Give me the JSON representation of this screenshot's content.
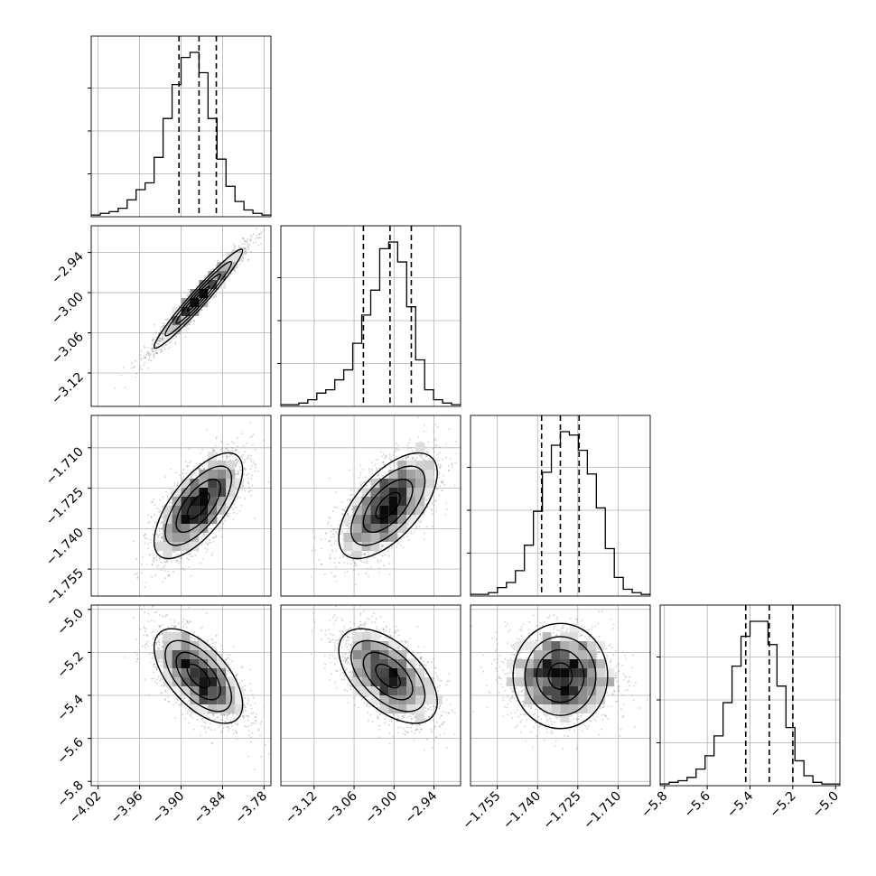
{
  "chart_data": {
    "type": "corner",
    "parameters": [
      {
        "ticks": [
          -4.02,
          -3.96,
          -3.9,
          -3.84,
          -3.78
        ],
        "tick_labels": [
          "−4.02",
          "−3.96",
          "−3.90",
          "−3.84",
          "−3.78"
        ],
        "range": [
          -4.03,
          -3.77
        ]
      },
      {
        "ticks": [
          -3.12,
          -3.06,
          -3.0,
          -2.94
        ],
        "tick_labels": [
          "−3.12",
          "−3.06",
          "−3.00",
          "−2.94"
        ],
        "range": [
          -3.17,
          -2.9
        ]
      },
      {
        "ticks": [
          -1.755,
          -1.74,
          -1.725,
          -1.71
        ],
        "tick_labels": [
          "−1.755",
          "−1.740",
          "−1.725",
          "−1.710"
        ],
        "range": [
          -1.765,
          -1.698
        ]
      },
      {
        "ticks": [
          -5.8,
          -5.6,
          -5.4,
          -5.2,
          -5.0
        ],
        "tick_labels": [
          "−5.8",
          "−5.6",
          "−5.4",
          "−5.2",
          "−5.0"
        ],
        "range": [
          -5.82,
          -4.98
        ]
      }
    ],
    "histograms": [
      {
        "bin_edges": [
          -4.03,
          -3.77
        ],
        "counts": [
          1,
          2,
          3,
          5,
          10,
          16,
          20,
          35,
          58,
          78,
          94,
          97,
          85,
          58,
          34,
          18,
          9,
          4,
          2,
          1
        ],
        "quantiles": [
          -3.903,
          -3.874,
          -3.849
        ]
      },
      {
        "bin_edges": [
          -3.17,
          -2.9
        ],
        "counts": [
          1,
          1,
          2,
          4,
          8,
          10,
          16,
          22,
          38,
          55,
          70,
          95,
          99,
          87,
          60,
          28,
          10,
          4,
          2,
          1
        ],
        "quantiles": [
          -3.046,
          -3.006,
          -2.974
        ]
      },
      {
        "bin_edges": [
          -1.765,
          -1.698
        ],
        "counts": [
          1,
          1,
          2,
          5,
          8,
          15,
          30,
          50,
          73,
          89,
          97,
          95,
          86,
          72,
          52,
          28,
          11,
          4,
          2,
          1
        ],
        "quantiles": [
          -1.7385,
          -1.7315,
          -1.7245
        ]
      },
      {
        "bin_edges": [
          -5.82,
          -4.98
        ],
        "counts": [
          1,
          2,
          3,
          5,
          10,
          18,
          30,
          50,
          72,
          90,
          99,
          99,
          85,
          60,
          35,
          15,
          6,
          2,
          1,
          1
        ],
        "quantiles": [
          -5.42,
          -5.31,
          -5.2
        ]
      }
    ],
    "pairs": [
      {
        "x": 0,
        "y": 1,
        "mean": [
          -3.875,
          -3.009
        ],
        "sd": [
          0.032,
          0.037
        ],
        "rho": 0.97
      },
      {
        "x": 0,
        "y": 2,
        "mean": [
          -3.875,
          -1.7315
        ],
        "sd": [
          0.032,
          0.0098
        ],
        "rho": 0.68
      },
      {
        "x": 1,
        "y": 2,
        "mean": [
          -3.009,
          -1.7315
        ],
        "sd": [
          0.037,
          0.0098
        ],
        "rho": 0.62
      },
      {
        "x": 0,
        "y": 3,
        "mean": [
          -3.875,
          -5.31
        ],
        "sd": [
          0.032,
          0.11
        ],
        "rho": -0.6
      },
      {
        "x": 1,
        "y": 3,
        "mean": [
          -3.009,
          -5.31
        ],
        "sd": [
          0.037,
          0.11
        ],
        "rho": -0.55
      },
      {
        "x": 2,
        "y": 3,
        "mean": [
          -1.7315,
          -5.31
        ],
        "sd": [
          0.0098,
          0.11
        ],
        "rho": 0.0
      }
    ],
    "grid": true,
    "colors": {
      "line": "#000000",
      "grid": "#b0b0b0",
      "density_dark": "#000000",
      "density_light": "#f7f7f7"
    }
  }
}
